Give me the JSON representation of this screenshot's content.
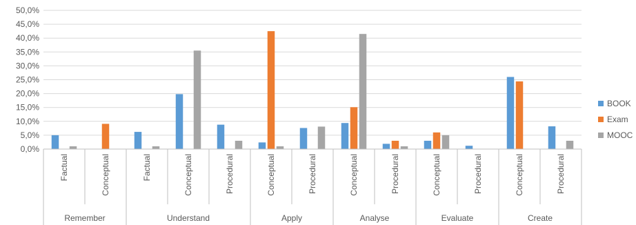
{
  "chart_data": {
    "type": "bar",
    "title": "",
    "xlabel": "",
    "ylabel": "",
    "ylim": [
      0,
      50
    ],
    "y_ticks": [
      "0,0%",
      "5,0%",
      "10,0%",
      "15,0%",
      "20,0%",
      "25,0%",
      "30,0%",
      "35,0%",
      "40,0%",
      "45,0%",
      "50,0%"
    ],
    "grid": true,
    "legend_position": "right",
    "groups": [
      {
        "label": "Remember",
        "categories": [
          "Factual",
          "Conceptual"
        ]
      },
      {
        "label": "Understand",
        "categories": [
          "Factual",
          "Conceptual",
          "Procedural"
        ]
      },
      {
        "label": "Apply",
        "categories": [
          "Conceptual",
          "Procedural"
        ]
      },
      {
        "label": "Analyse",
        "categories": [
          "Conceptual",
          "Procedural"
        ]
      },
      {
        "label": "Evaluate",
        "categories": [
          "Conceptual",
          "Procedural"
        ]
      },
      {
        "label": "Create",
        "categories": [
          "Conceptual",
          "Procedural"
        ]
      }
    ],
    "series": [
      {
        "name": "BOOK",
        "color": "#5B9BD5",
        "values": [
          5.0,
          0.0,
          6.2,
          19.8,
          8.8,
          2.4,
          7.6,
          9.4,
          1.9,
          3.0,
          1.2,
          26.0,
          8.2
        ]
      },
      {
        "name": "Exam",
        "color": "#ED7D31",
        "values": [
          0.0,
          9.1,
          0.0,
          0.0,
          0.0,
          42.5,
          0.0,
          15.1,
          3.0,
          6.0,
          0.0,
          24.4,
          0.0
        ]
      },
      {
        "name": "MOOC",
        "color": "#A5A5A5",
        "values": [
          1.0,
          0.0,
          1.0,
          35.5,
          3.0,
          1.0,
          8.1,
          41.5,
          1.0,
          5.0,
          0.0,
          0.0,
          3.0
        ]
      }
    ]
  }
}
